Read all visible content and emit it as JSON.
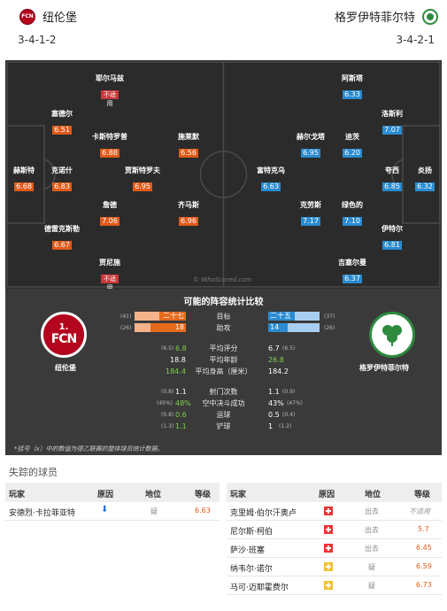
{
  "header": {
    "home": {
      "name": "纽伦堡",
      "formation": "3-4-1-2",
      "badge_text": "FCN"
    },
    "away": {
      "name": "格罗伊特菲尔特",
      "formation": "3-4-2-1"
    }
  },
  "pitch": {
    "watermark": "© WhoScored.com",
    "home_players": [
      {
        "name": "耶尔马兹",
        "rating": "不适",
        "note": "用"
      },
      {
        "name": "塞德尔",
        "rating": "6.51"
      },
      {
        "name": "卡斯特罗普",
        "rating": "6.88"
      },
      {
        "name": "施莱默",
        "rating": "6.56"
      },
      {
        "name": "赫斯特",
        "rating": "6.68"
      },
      {
        "name": "克诺什",
        "rating": "6.83"
      },
      {
        "name": "贾斯特罗夫",
        "rating": "6.95"
      },
      {
        "name": "詹德",
        "rating": "7.06"
      },
      {
        "name": "齐马斯",
        "rating": "6.96"
      },
      {
        "name": "德雷克斯勒",
        "rating": "6.67"
      },
      {
        "name": "贾尼施",
        "rating": "不适",
        "note": "用"
      }
    ],
    "away_players": [
      {
        "name": "阿斯塔",
        "rating": "6.33"
      },
      {
        "name": "洛斯利",
        "rating": "7.07"
      },
      {
        "name": "赫尔戈塔",
        "rating": "6.95"
      },
      {
        "name": "迪茨",
        "rating": "6.20"
      },
      {
        "name": "富特克乌",
        "rating": "6.63"
      },
      {
        "name": "夸西",
        "rating": "6.85"
      },
      {
        "name": "炎扬",
        "rating": "6.32"
      },
      {
        "name": "克劳斯",
        "rating": "7.17"
      },
      {
        "name": "绿色的",
        "rating": "7.10"
      },
      {
        "name": "伊特尔",
        "rating": "6.81"
      },
      {
        "name": "吉塞尔曼",
        "rating": "6.37"
      }
    ]
  },
  "comparison": {
    "title": "可能的阵容统计比较",
    "home_name": "纽伦堡",
    "away_name": "格罗伊特菲尔特",
    "rows": [
      {
        "label": "目标",
        "home_paren": "(41)",
        "home": "二十七",
        "away": "二十五",
        "away_paren": "(37)"
      },
      {
        "label": "助攻",
        "home_paren": "(26)",
        "home": "18",
        "away": "14",
        "away_paren": "(26)"
      },
      {
        "label": "平均评分",
        "home_paren": "(6.5)",
        "home": "6.8",
        "away": "6.7",
        "away_paren": "(6.5)"
      },
      {
        "label": "平均年龄",
        "home_paren": "",
        "home": "18.8",
        "away": "26.8",
        "away_paren": ""
      },
      {
        "label": "平均身高（厘米）",
        "home_paren": "",
        "home": "184.4",
        "away": "184.2",
        "away_paren": ""
      },
      {
        "label": "射门次数",
        "home_paren": "(0.8)",
        "home": "1.1",
        "away": "1.1",
        "away_paren": "(0.9)"
      },
      {
        "label": "空中决斗成功",
        "home_paren": "(45%)",
        "home": "48%",
        "away": "43%",
        "away_paren": "(47%)"
      },
      {
        "label": "运球",
        "home_paren": "(0.8)",
        "home": "0.6",
        "away": "0.5",
        "away_paren": "(0.4)"
      },
      {
        "label": "铲球",
        "home_paren": "(1.3)",
        "home": "1.1",
        "away": "1",
        "away_paren": "(1.2)"
      }
    ],
    "note": "*括号（x）中的数值为德乙联赛的整体球员统计数据。"
  },
  "missing": {
    "title": "失踪的球员",
    "headers": [
      "玩家",
      "原因",
      "地位",
      "等级"
    ],
    "home": [
      {
        "player": "安德烈·卡拉菲亚特",
        "reason": "down",
        "status": "疑",
        "rating": "6.63"
      }
    ],
    "away": [
      {
        "player": "克里姆·伯尔汗奥卢",
        "reason": "injury",
        "status": "出去",
        "rating": "不适用"
      },
      {
        "player": "尼尔斯·柯伯",
        "reason": "injury",
        "status": "出去",
        "rating": "5.7"
      },
      {
        "player": "萨沙·班塞",
        "reason": "injury",
        "status": "出去",
        "rating": "6.45"
      },
      {
        "player": "纳韦尔·诺尔",
        "reason": "doubt",
        "status": "疑",
        "rating": "6.59"
      },
      {
        "player": "马可·迈耶霍费尔",
        "reason": "doubt",
        "status": "疑",
        "rating": "6.73"
      }
    ]
  }
}
